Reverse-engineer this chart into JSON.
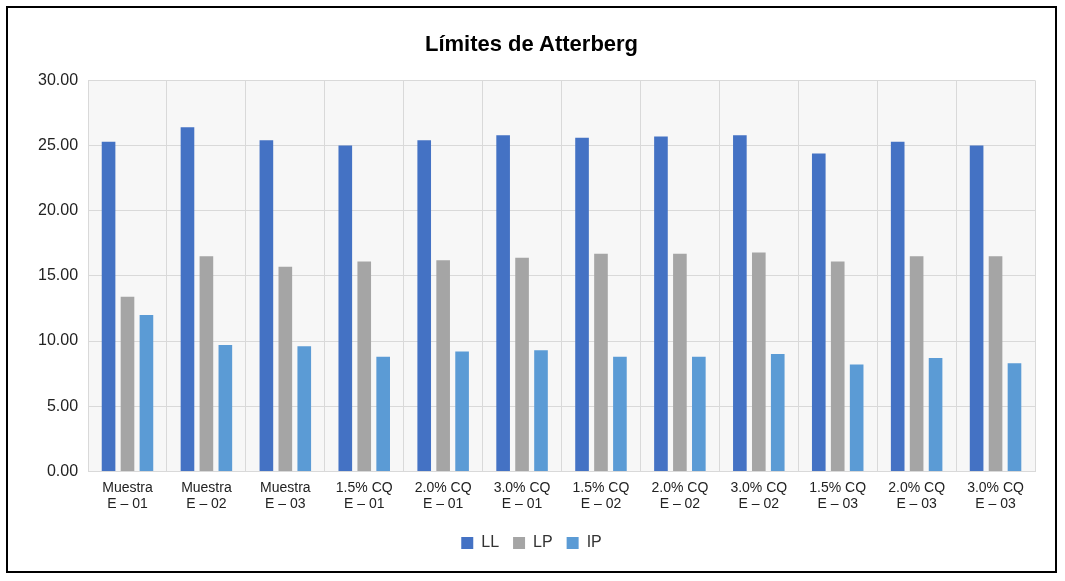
{
  "chart_data": {
    "type": "bar",
    "title": "Límites de Atterberg",
    "categories": [
      "Muestra\nE – 01",
      "Muestra\nE – 02",
      "Muestra\nE – 03",
      "1.5% CQ\nE – 01",
      "2.0% CQ\nE – 01",
      "3.0% CQ\nE – 01",
      "1.5% CQ\nE – 02",
      "2.0% CQ\nE – 02",
      "3.0% CQ\nE – 02",
      "1.5% CQ\nE – 03",
      "2.0% CQ\nE – 03",
      "3.0% CQ\nE – 03"
    ],
    "series": [
      {
        "name": "LL",
        "color": "#4472c4",
        "values": [
          25.3,
          26.4,
          25.4,
          25.0,
          25.4,
          25.8,
          25.6,
          25.7,
          25.8,
          24.4,
          25.3,
          25.0
        ]
      },
      {
        "name": "LP",
        "color": "#a5a5a5",
        "values": [
          13.4,
          16.5,
          15.7,
          16.1,
          16.2,
          16.4,
          16.7,
          16.7,
          16.8,
          16.1,
          16.5,
          16.5
        ]
      },
      {
        "name": "IP",
        "color": "#5b9bd5",
        "values": [
          12.0,
          9.7,
          9.6,
          8.8,
          9.2,
          9.3,
          8.8,
          8.8,
          9.0,
          8.2,
          8.7,
          8.3
        ]
      }
    ],
    "ylim": [
      0,
      30
    ],
    "yticks": [
      {
        "value": 0,
        "label": "0.00"
      },
      {
        "value": 5,
        "label": "5.00"
      },
      {
        "value": 10,
        "label": "10.00"
      },
      {
        "value": 15,
        "label": "15.00"
      },
      {
        "value": 20,
        "label": "20.00"
      },
      {
        "value": 25,
        "label": "25.00"
      },
      {
        "value": 30,
        "label": "30.00"
      }
    ],
    "grid": true,
    "legend": "bottom"
  }
}
